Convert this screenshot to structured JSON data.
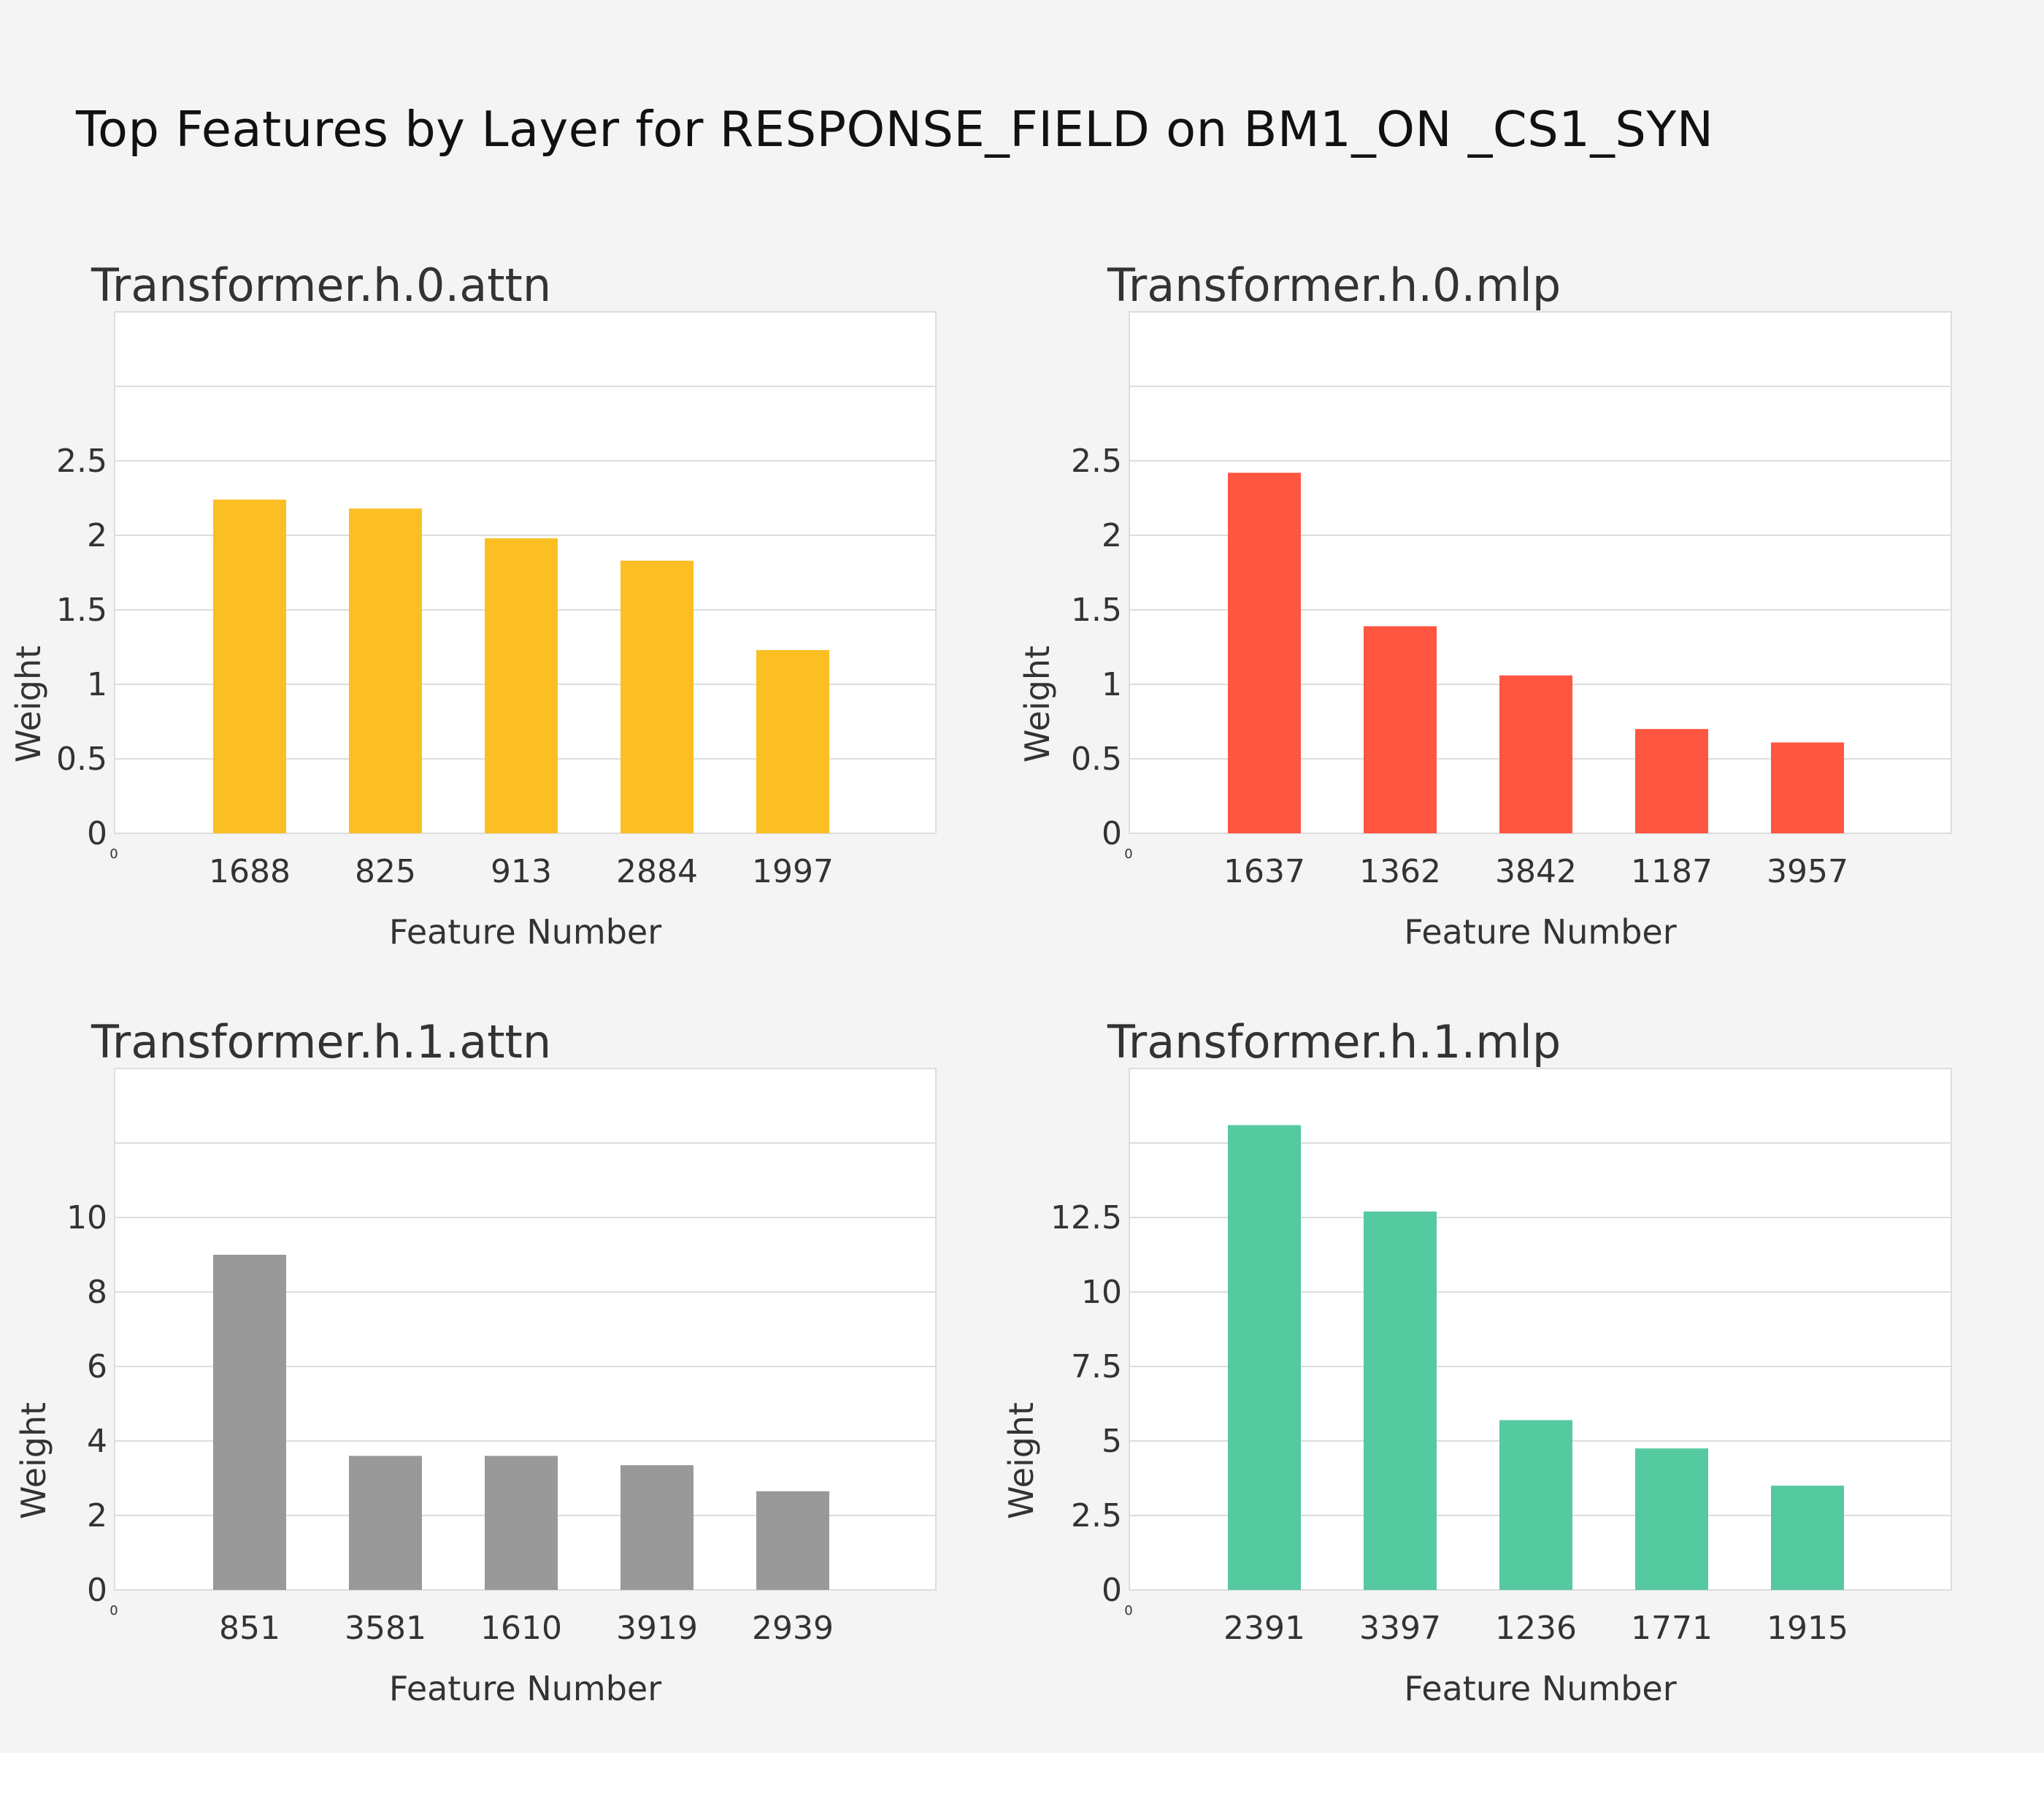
{
  "figure": {
    "title": "Top Features by Layer for RESPONSE_FIELD on BM1_ON _CS1_SYN",
    "background_color": "#f4f4f4",
    "plot_background_color": "#ffffff",
    "grid_color": "#dddddd"
  },
  "chart_data": [
    {
      "type": "bar",
      "title": "Transformer.h.0.attn",
      "categories": [
        "1688",
        "825",
        "913",
        "2884",
        "1997"
      ],
      "values": [
        2.24,
        2.18,
        1.98,
        1.83,
        1.23
      ],
      "color": "#fbbf24",
      "xlabel": "Feature Number",
      "ylabel": "Weight",
      "ylim": [
        0,
        3.5
      ],
      "yticks": [
        0,
        0.5,
        1,
        1.5,
        2,
        2.5
      ],
      "ytick_labels": [
        "0",
        "0.5",
        "1",
        "1.5",
        "2",
        "2.5"
      ],
      "grid_lines": [
        0.5,
        1,
        1.5,
        2,
        2.5,
        3
      ],
      "origin_label": "0",
      "grid": true
    },
    {
      "type": "bar",
      "title": "Transformer.h.0.mlp",
      "categories": [
        "1637",
        "1362",
        "3842",
        "1187",
        "3957"
      ],
      "values": [
        2.42,
        1.39,
        1.06,
        0.7,
        0.61
      ],
      "color": "#ff5641",
      "xlabel": "Feature Number",
      "ylabel": "Weight",
      "ylim": [
        0,
        3.5
      ],
      "yticks": [
        0,
        0.5,
        1,
        1.5,
        2,
        2.5
      ],
      "ytick_labels": [
        "0",
        "0.5",
        "1",
        "1.5",
        "2",
        "2.5"
      ],
      "grid_lines": [
        0.5,
        1,
        1.5,
        2,
        2.5,
        3
      ],
      "origin_label": "0",
      "grid": true
    },
    {
      "type": "bar",
      "title": "Transformer.h.1.attn",
      "categories": [
        "851",
        "3581",
        "1610",
        "3919",
        "2939"
      ],
      "values": [
        9.0,
        3.6,
        3.6,
        3.35,
        2.65
      ],
      "color": "#999999",
      "xlabel": "Feature Number",
      "ylabel": "Weight",
      "ylim": [
        0,
        14
      ],
      "yticks": [
        0,
        2,
        4,
        6,
        8,
        10
      ],
      "ytick_labels": [
        "0",
        "2",
        "4",
        "6",
        "8",
        "10"
      ],
      "grid_lines": [
        2,
        4,
        6,
        8,
        10,
        12
      ],
      "origin_label": "0",
      "grid": true
    },
    {
      "type": "bar",
      "title": "Transformer.h.1.mlp",
      "categories": [
        "2391",
        "3397",
        "1236",
        "1771",
        "1915"
      ],
      "values": [
        15.6,
        12.7,
        5.7,
        4.75,
        3.5
      ],
      "color": "#55c9a0",
      "xlabel": "Feature Number",
      "ylabel": "Weight",
      "ylim": [
        0,
        17.5
      ],
      "yticks": [
        0,
        2.5,
        5,
        7.5,
        10,
        12.5
      ],
      "ytick_labels": [
        "0",
        "2.5",
        "5",
        "7.5",
        "10",
        "12.5"
      ],
      "grid_lines": [
        2.5,
        5,
        7.5,
        10,
        12.5,
        15
      ],
      "origin_label": "0",
      "grid": true
    }
  ]
}
